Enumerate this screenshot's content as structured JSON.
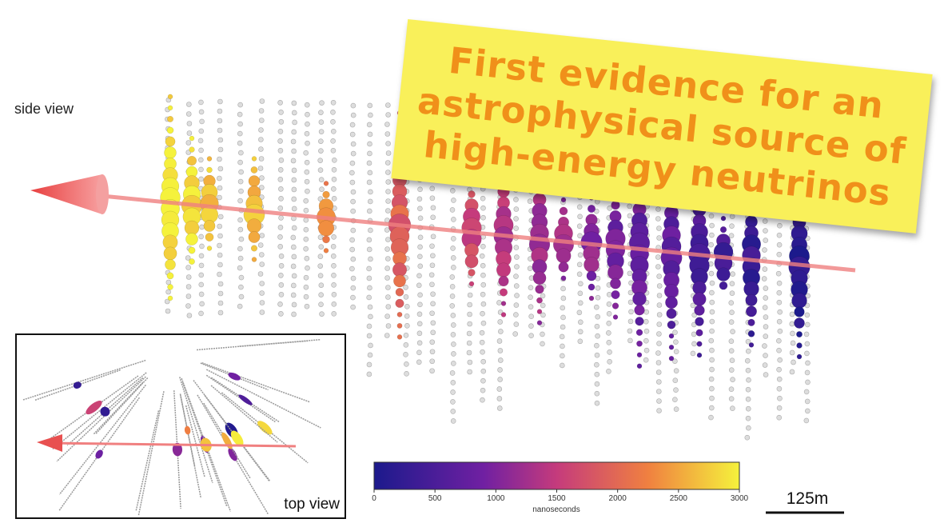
{
  "labels": {
    "side_view": "side view",
    "top_view": "top view",
    "scale": "125m"
  },
  "note": {
    "lines": [
      "First evidence for an",
      "astrophysical source of",
      "high-energy neutrinos"
    ]
  },
  "colorbar": {
    "ticks": [
      0,
      500,
      1000,
      1500,
      2000,
      2500,
      3000
    ],
    "label": "nanoseconds"
  }
}
